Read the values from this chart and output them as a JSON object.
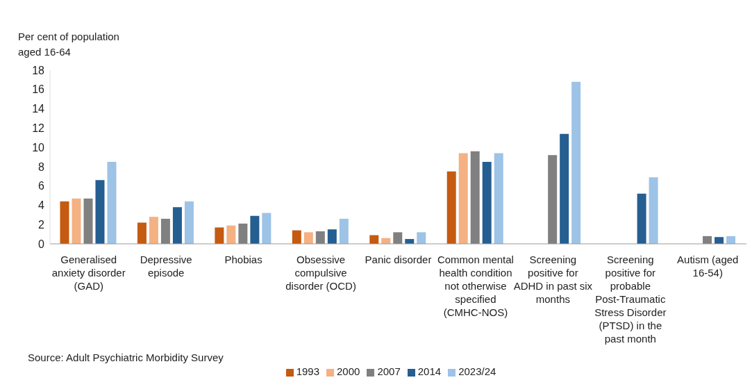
{
  "chart_data": {
    "type": "bar",
    "ylabel": "Per cent of population aged 16-64",
    "categories": [
      "Generalised anxiety disorder (GAD)",
      "Depressive episode",
      "Phobias",
      "Obsessive compulsive disorder (OCD)",
      "Panic disorder",
      "Common mental health condition not otherwise specified (CMHC-NOS)",
      "Screening positive for ADHD in past six months",
      "Screening positive for probable Post-Traumatic Stress Disorder (PTSD) in the past month",
      "Autism (aged 16-54)"
    ],
    "series": [
      {
        "name": "1993",
        "color": "#c55a11",
        "values": [
          4.4,
          2.2,
          1.7,
          1.4,
          0.9,
          7.5,
          null,
          null,
          null
        ]
      },
      {
        "name": "2000",
        "color": "#f4b183",
        "values": [
          4.7,
          2.8,
          1.9,
          1.2,
          0.6,
          9.4,
          null,
          null,
          null
        ]
      },
      {
        "name": "2007",
        "color": "#808080",
        "values": [
          4.7,
          2.6,
          2.1,
          1.3,
          1.2,
          9.6,
          9.2,
          null,
          0.8
        ]
      },
      {
        "name": "2014",
        "color": "#255e91",
        "values": [
          6.6,
          3.8,
          2.9,
          1.5,
          0.5,
          8.5,
          11.4,
          5.2,
          0.7
        ]
      },
      {
        "name": "2023/24",
        "color": "#9dc3e6",
        "values": [
          8.5,
          4.4,
          3.2,
          2.6,
          1.2,
          9.4,
          16.8,
          6.9,
          0.8
        ]
      }
    ],
    "ylim": [
      0,
      18
    ],
    "yticks": [
      0,
      2,
      4,
      6,
      8,
      10,
      12,
      14,
      16,
      18
    ],
    "grid": false,
    "legend": "bottom",
    "annotations": [
      "Source: Adult Psychiatric Morbidity Survey"
    ]
  }
}
